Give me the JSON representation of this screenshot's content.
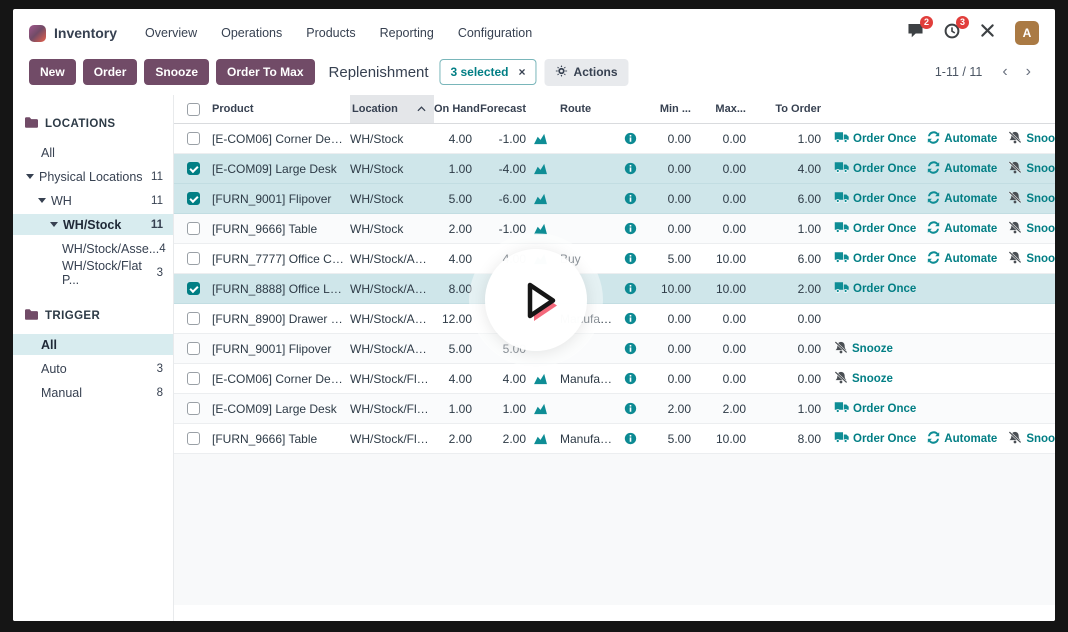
{
  "navbar": {
    "app_name": "Inventory",
    "menu": [
      "Overview",
      "Operations",
      "Products",
      "Reporting",
      "Configuration"
    ],
    "messages_badge": "2",
    "activities_badge": "3",
    "avatar_letter": "A"
  },
  "control_bar": {
    "buttons": [
      "New",
      "Order",
      "Snooze",
      "Order To Max"
    ],
    "title": "Replenishment",
    "selected_badge": "3 selected",
    "selected_close": "×",
    "actions_label": "Actions",
    "pager_text": "1-11 / 11",
    "pager_prev": "‹",
    "pager_next": "›"
  },
  "sidebar": {
    "locations": {
      "header": "LOCATIONS",
      "items": [
        {
          "label": "All",
          "count": "",
          "indent": 0,
          "caret": false,
          "selected": false
        },
        {
          "label": "Physical Locations",
          "count": "11",
          "indent": 1,
          "caret": true,
          "selected": false
        },
        {
          "label": "WH",
          "count": "11",
          "indent": 2,
          "caret": true,
          "selected": false
        },
        {
          "label": "WH/Stock",
          "count": "11",
          "indent": 3,
          "caret": true,
          "selected": true
        },
        {
          "label": "WH/Stock/Asse...",
          "count": "4",
          "indent": 4,
          "caret": false,
          "selected": false
        },
        {
          "label": "WH/Stock/Flat P...",
          "count": "3",
          "indent": 4,
          "caret": false,
          "selected": false
        }
      ]
    },
    "trigger": {
      "header": "TRIGGER",
      "items": [
        {
          "label": "All",
          "count": "",
          "indent": 0,
          "caret": false,
          "selected": true
        },
        {
          "label": "Auto",
          "count": "3",
          "indent": 0,
          "caret": false,
          "selected": false
        },
        {
          "label": "Manual",
          "count": "8",
          "indent": 0,
          "caret": false,
          "selected": false
        }
      ]
    }
  },
  "table": {
    "columns": {
      "product": "Product",
      "location": "Location",
      "on_hand": "On Hand",
      "forecast": "Forecast",
      "route": "Route",
      "min": "Min ...",
      "max": "Max...",
      "to_order": "To Order"
    },
    "action_labels": {
      "order_once": "Order Once",
      "automate": "Automate",
      "snooze": "Snooze"
    },
    "rows": [
      {
        "product": "[E-COM06] Corner Desk ...",
        "location": "WH/Stock",
        "on_hand": "4.00",
        "forecast": "-1.00",
        "chart": true,
        "route": "",
        "min": "0.00",
        "max": "0.00",
        "to_order": "1.00",
        "actions": [
          "order_once",
          "automate",
          "snooze"
        ],
        "checked": false,
        "selected": false
      },
      {
        "product": "[E-COM09] Large Desk",
        "location": "WH/Stock",
        "on_hand": "1.00",
        "forecast": "-4.00",
        "chart": true,
        "route": "",
        "min": "0.00",
        "max": "0.00",
        "to_order": "4.00",
        "actions": [
          "order_once",
          "automate",
          "snooze"
        ],
        "checked": true,
        "selected": true
      },
      {
        "product": "[FURN_9001] Flipover",
        "location": "WH/Stock",
        "on_hand": "5.00",
        "forecast": "-6.00",
        "chart": true,
        "route": "",
        "min": "0.00",
        "max": "0.00",
        "to_order": "6.00",
        "actions": [
          "order_once",
          "automate",
          "snooze"
        ],
        "checked": true,
        "selected": true
      },
      {
        "product": "[FURN_9666] Table",
        "location": "WH/Stock",
        "on_hand": "2.00",
        "forecast": "-1.00",
        "chart": true,
        "route": "",
        "min": "0.00",
        "max": "0.00",
        "to_order": "1.00",
        "actions": [
          "order_once",
          "automate",
          "snooze"
        ],
        "checked": false,
        "selected": false
      },
      {
        "product": "[FURN_7777] Office Chair",
        "location": "WH/Stock/Asse...",
        "on_hand": "4.00",
        "forecast": "4.00",
        "chart": true,
        "route": "Buy",
        "min": "5.00",
        "max": "10.00",
        "to_order": "6.00",
        "actions": [
          "order_once",
          "automate",
          "snooze"
        ],
        "checked": false,
        "selected": false
      },
      {
        "product": "[FURN_8888] Office Lamp",
        "location": "WH/Stock/Asse...",
        "on_hand": "8.00",
        "forecast": "",
        "chart": false,
        "route": "",
        "min": "10.00",
        "max": "10.00",
        "to_order": "2.00",
        "actions": [
          "order_once"
        ],
        "checked": true,
        "selected": true
      },
      {
        "product": "[FURN_8900] Drawer Black",
        "location": "WH/Stock/Asse...",
        "on_hand": "12.00",
        "forecast": "",
        "chart": false,
        "route": "Manufacture",
        "min": "0.00",
        "max": "0.00",
        "to_order": "0.00",
        "actions": [],
        "checked": false,
        "selected": false
      },
      {
        "product": "[FURN_9001] Flipover",
        "location": "WH/Stock/Asse...",
        "on_hand": "5.00",
        "forecast": "5.00",
        "chart": false,
        "route": "",
        "min": "0.00",
        "max": "0.00",
        "to_order": "0.00",
        "actions": [
          "snooze"
        ],
        "checked": false,
        "selected": false
      },
      {
        "product": "[E-COM06] Corner Desk ...",
        "location": "WH/Stock/Flat P...",
        "on_hand": "4.00",
        "forecast": "4.00",
        "chart": true,
        "route": "Manufacture",
        "min": "0.00",
        "max": "0.00",
        "to_order": "0.00",
        "actions": [
          "snooze"
        ],
        "checked": false,
        "selected": false
      },
      {
        "product": "[E-COM09] Large Desk",
        "location": "WH/Stock/Flat P...",
        "on_hand": "1.00",
        "forecast": "1.00",
        "chart": true,
        "route": "",
        "min": "2.00",
        "max": "2.00",
        "to_order": "1.00",
        "actions": [
          "order_once"
        ],
        "checked": false,
        "selected": false
      },
      {
        "product": "[FURN_9666] Table",
        "location": "WH/Stock/Flat P...",
        "on_hand": "2.00",
        "forecast": "2.00",
        "chart": true,
        "route": "Manufacture",
        "min": "5.00",
        "max": "10.00",
        "to_order": "8.00",
        "actions": [
          "order_once",
          "automate",
          "snooze"
        ],
        "checked": false,
        "selected": false
      }
    ]
  },
  "colors": {
    "accent_teal": "#017E84",
    "primary_purple": "#714B67",
    "selected_row_bg": "#CFE6EA",
    "badge_red": "#E13E3B",
    "avatar_bg": "#AA7A44",
    "play_pink": "#F4697C"
  }
}
